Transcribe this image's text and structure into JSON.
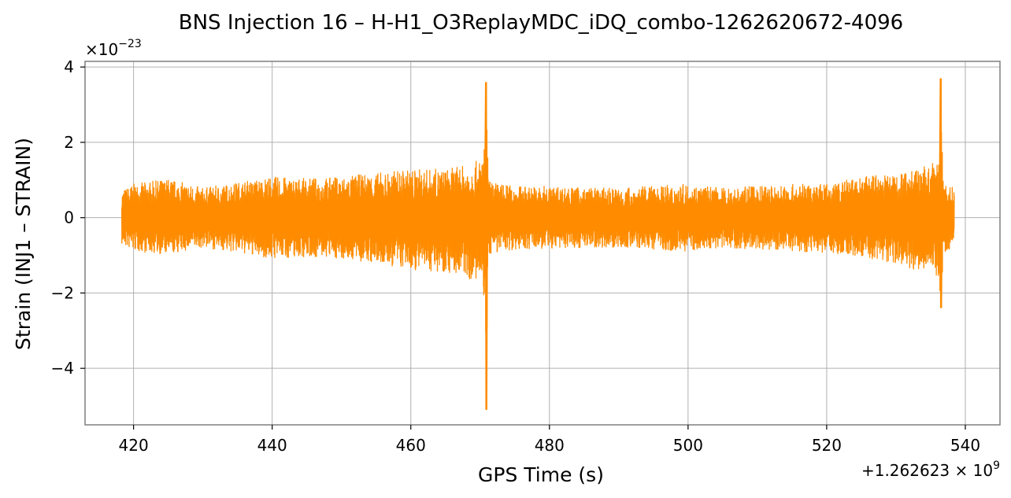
{
  "chart_data": {
    "type": "line",
    "title": "BNS Injection 16 – H-H1_O3ReplayMDC_iDQ_combo-1262620672-4096",
    "xlabel": "GPS Time (s)",
    "ylabel": "Strain (INJ1 – STRAIN)",
    "x_offset_label": "+1.262623 × 10^9",
    "y_scale_label": "×10^−23",
    "xlim": [
      413,
      545
    ],
    "ylim": [
      -5.5,
      4.15
    ],
    "x_ticks": [
      420,
      440,
      460,
      480,
      500,
      520,
      540
    ],
    "x_tick_labels": [
      "420",
      "440",
      "460",
      "480",
      "500",
      "520",
      "540"
    ],
    "y_ticks": [
      -4,
      -2,
      0,
      2,
      4
    ],
    "y_tick_labels": [
      "−4",
      "−2",
      "0",
      "2",
      "4"
    ],
    "grid": true,
    "legend": "none",
    "line_color": "#ff8c00",
    "series": [
      {
        "x_range": [
          418.3,
          538.4
        ],
        "envelope_x": [
          418.3,
          420,
          425,
          430,
          435,
          440,
          445,
          450,
          455,
          460,
          465,
          468,
          470,
          470.7,
          470.9,
          471.05,
          471.2,
          472,
          475,
          480,
          485,
          490,
          495,
          500,
          505,
          510,
          515,
          520,
          525,
          530,
          533,
          535,
          536.2,
          536.45,
          536.65,
          537,
          538.4
        ],
        "envelope_max": [
          0.75,
          0.9,
          1.05,
          0.8,
          0.95,
          1.1,
          1.05,
          1.1,
          1.2,
          1.3,
          1.3,
          1.4,
          1.55,
          2.0,
          3.6,
          2.2,
          1.0,
          0.95,
          0.85,
          0.85,
          0.8,
          0.8,
          0.85,
          0.9,
          0.8,
          0.85,
          0.9,
          0.9,
          1.1,
          1.2,
          1.35,
          1.4,
          1.6,
          3.7,
          1.9,
          0.95,
          0.8
        ],
        "envelope_min": [
          -0.75,
          -0.9,
          -1.0,
          -0.8,
          -0.95,
          -1.1,
          -1.05,
          -1.1,
          -1.25,
          -1.4,
          -1.45,
          -1.6,
          -1.8,
          -2.3,
          -5.1,
          -2.6,
          -1.0,
          -0.95,
          -0.85,
          -0.85,
          -0.8,
          -0.8,
          -0.85,
          -0.9,
          -0.8,
          -0.85,
          -0.9,
          -0.95,
          -1.05,
          -1.25,
          -1.4,
          -1.55,
          -1.75,
          -2.4,
          -1.6,
          -0.95,
          -0.75
        ]
      }
    ]
  }
}
